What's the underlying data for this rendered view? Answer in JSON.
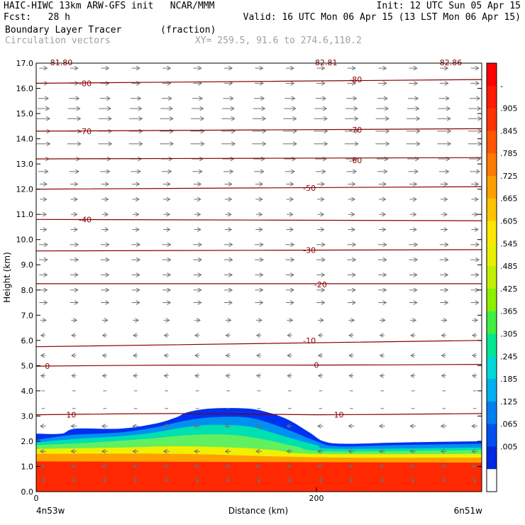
{
  "header": {
    "model_line": "HAIC-HIWC 13km ARW-GFS init   NCAR/MMM",
    "init_line": "Init: 12 UTC Sun 05 Apr 15",
    "fcst_line": "Fcst:   28 h",
    "valid_line": "Valid: 16 UTC Mon 06 Apr 15 (13 LST Mon 06 Apr 15)",
    "field_line": "Boundary Layer Tracer       (fraction)",
    "vectors_line": "Circulation vectors",
    "xy_line": "XY= 259.5, 91.6 to 274.6,110.2"
  },
  "chart_data": {
    "type": "heatmap",
    "title": "Boundary Layer Tracer",
    "units": "(fraction)",
    "ylabel": "Height (km)",
    "xlabel": "Distance (km)",
    "ylim": [
      0,
      17
    ],
    "xlim": [
      0,
      318
    ],
    "y_ticks": [
      "0.0",
      "1.0",
      "2.0",
      "3.0",
      "4.0",
      "5.0",
      "6.0",
      "7.0",
      "8.0",
      "9.0",
      "10.0",
      "11.0",
      "12.0",
      "13.0",
      "14.0",
      "15.0",
      "16.0",
      "17.0"
    ],
    "x_tick_labels": [
      {
        "x": 0,
        "label": "0"
      },
      {
        "x": 200,
        "label": "200"
      }
    ],
    "x_end_labels": {
      "left": "4n53w",
      "right": "6n51w"
    },
    "colorbar": {
      "labels": [
        "-",
        ".905",
        ".845",
        ".785",
        ".725",
        ".665",
        ".605",
        ".545",
        ".485",
        ".425",
        ".365",
        ".305",
        ".245",
        ".185",
        ".125",
        ".065",
        ".005"
      ],
      "colors": [
        "#ff0000",
        "#ff1a00",
        "#ff3300",
        "#ff5500",
        "#ff7a00",
        "#ffa000",
        "#ffc400",
        "#ffe600",
        "#e8f000",
        "#c0f000",
        "#8cf000",
        "#40f040",
        "#00e890",
        "#00d8d8",
        "#00b0f0",
        "#0080f0",
        "#0050f0",
        "#0028e0",
        "#ffffff"
      ]
    },
    "tracer_layers": [
      {
        "value": 0.005,
        "color": "#0030f0",
        "top_km": [
          [
            0,
            2.3
          ],
          [
            18,
            2.3
          ],
          [
            28,
            2.5
          ],
          [
            60,
            2.5
          ],
          [
            85,
            2.7
          ],
          [
            100,
            2.95
          ],
          [
            108,
            3.15
          ],
          [
            125,
            3.3
          ],
          [
            150,
            3.3
          ],
          [
            165,
            3.15
          ],
          [
            180,
            2.85
          ],
          [
            195,
            2.35
          ],
          [
            205,
            2.0
          ],
          [
            220,
            1.9
          ],
          [
            260,
            1.95
          ],
          [
            318,
            2.0
          ]
        ]
      },
      {
        "value": 0.125,
        "color": "#0090f0",
        "top_km": [
          [
            0,
            2.05
          ],
          [
            25,
            2.25
          ],
          [
            60,
            2.35
          ],
          [
            85,
            2.55
          ],
          [
            105,
            2.8
          ],
          [
            125,
            2.95
          ],
          [
            150,
            2.95
          ],
          [
            165,
            2.75
          ],
          [
            180,
            2.45
          ],
          [
            200,
            2.0
          ],
          [
            215,
            1.8
          ],
          [
            260,
            1.85
          ],
          [
            318,
            1.9
          ]
        ]
      },
      {
        "value": 0.245,
        "color": "#00e0b0",
        "top_km": [
          [
            0,
            1.95
          ],
          [
            30,
            2.1
          ],
          [
            60,
            2.2
          ],
          [
            85,
            2.35
          ],
          [
            105,
            2.55
          ],
          [
            125,
            2.65
          ],
          [
            150,
            2.6
          ],
          [
            165,
            2.4
          ],
          [
            180,
            2.15
          ],
          [
            200,
            1.85
          ],
          [
            215,
            1.7
          ],
          [
            318,
            1.75
          ]
        ]
      },
      {
        "value": 0.365,
        "color": "#60f060",
        "top_km": [
          [
            0,
            1.85
          ],
          [
            40,
            1.95
          ],
          [
            80,
            2.1
          ],
          [
            110,
            2.25
          ],
          [
            140,
            2.25
          ],
          [
            165,
            2.05
          ],
          [
            185,
            1.8
          ],
          [
            210,
            1.6
          ],
          [
            318,
            1.65
          ]
        ]
      },
      {
        "value": 0.545,
        "color": "#f0f000",
        "top_km": [
          [
            0,
            1.7
          ],
          [
            60,
            1.75
          ],
          [
            100,
            1.8
          ],
          [
            140,
            1.75
          ],
          [
            170,
            1.65
          ],
          [
            200,
            1.5
          ],
          [
            318,
            1.5
          ]
        ]
      },
      {
        "value": 0.665,
        "color": "#ffa000",
        "top_km": [
          [
            0,
            1.5
          ],
          [
            100,
            1.5
          ],
          [
            170,
            1.4
          ],
          [
            220,
            1.35
          ],
          [
            318,
            1.35
          ]
        ]
      },
      {
        "value": 0.845,
        "color": "#ff2800",
        "top_km": [
          [
            0,
            1.2
          ],
          [
            318,
            1.15
          ]
        ]
      }
    ],
    "temperature_contours": [
      {
        "label": "0",
        "points": [
          [
            0,
            4.98
          ],
          [
            100,
            5.02
          ],
          [
            200,
            5.02
          ],
          [
            318,
            5.05
          ]
        ],
        "label_at": [
          [
            8,
            4.98
          ],
          [
            200,
            5.02
          ]
        ]
      },
      {
        "label": "10",
        "points": [
          [
            0,
            3.05
          ],
          [
            100,
            3.1
          ],
          [
            200,
            3.05
          ],
          [
            318,
            3.1
          ]
        ],
        "label_at": [
          [
            25,
            3.05
          ],
          [
            216,
            3.05
          ]
        ]
      },
      {
        "label": "-10",
        "points": [
          [
            0,
            5.75
          ],
          [
            318,
            6.0
          ]
        ],
        "label_at": [
          [
            195,
            6.0
          ]
        ]
      },
      {
        "label": "-20",
        "points": [
          [
            0,
            8.25
          ],
          [
            318,
            8.25
          ]
        ],
        "label_at": [
          [
            203,
            8.22
          ]
        ]
      },
      {
        "label": "-30",
        "points": [
          [
            0,
            9.55
          ],
          [
            318,
            9.6
          ]
        ],
        "label_at": [
          [
            195,
            9.58
          ]
        ]
      },
      {
        "label": "-40",
        "points": [
          [
            0,
            10.8
          ],
          [
            318,
            10.75
          ]
        ],
        "label_at": [
          [
            35,
            10.8
          ]
        ]
      },
      {
        "label": "-50",
        "points": [
          [
            0,
            12.0
          ],
          [
            318,
            12.1
          ]
        ],
        "label_at": [
          [
            195,
            12.05
          ]
        ]
      },
      {
        "label": "-60",
        "points": [
          [
            0,
            13.2
          ],
          [
            318,
            13.25
          ]
        ],
        "label_at": [
          [
            228,
            13.15
          ]
        ]
      },
      {
        "label": "-70",
        "points": [
          [
            0,
            14.3
          ],
          [
            318,
            14.4
          ]
        ],
        "label_at": [
          [
            35,
            14.3
          ],
          [
            228,
            14.35
          ]
        ]
      },
      {
        "label": "-80",
        "points": [
          [
            0,
            16.2
          ],
          [
            318,
            16.35
          ]
        ],
        "label_at": [
          [
            35,
            16.2
          ],
          [
            228,
            16.35
          ]
        ]
      }
    ],
    "clipped_top_labels": [
      {
        "x": 8,
        "label": "-81.80"
      },
      {
        "x": 197,
        "label": "-82.81"
      },
      {
        "x": 286,
        "label": "-82.86"
      }
    ],
    "vector_rows": [
      {
        "z": 0.5,
        "u": 0.0,
        "w": -2.0,
        "mag": 0.4
      },
      {
        "z": 1.0,
        "u": -0.4,
        "w": 0.0,
        "mag": 0.3
      },
      {
        "z": 1.6,
        "u": -0.6,
        "w": 0.0,
        "mag": 0.3
      },
      {
        "z": 2.6,
        "u": -0.4,
        "w": 0.0,
        "mag": 0.3
      },
      {
        "z": 3.3,
        "u": 0.0,
        "w": 0.0,
        "mag": 0.1
      },
      {
        "z": 4.0,
        "u": 0.2,
        "w": 0.0,
        "mag": 0.1
      },
      {
        "z": 4.6,
        "u": -0.4,
        "w": 0.0,
        "mag": 0.2
      },
      {
        "z": 5.4,
        "u": -0.5,
        "w": 0.0,
        "mag": 0.2
      },
      {
        "z": 6.2,
        "u": -0.5,
        "w": 0.0,
        "mag": 0.2
      },
      {
        "z": 6.8,
        "u": 0.4,
        "w": 0.0,
        "mag": 0.3
      },
      {
        "z": 7.5,
        "u": 1.0,
        "w": 0.0,
        "mag": 0.5
      },
      {
        "z": 8.0,
        "u": 1.0,
        "w": 0.0,
        "mag": 0.5
      },
      {
        "z": 8.6,
        "u": 1.0,
        "w": 0.0,
        "mag": 0.5
      },
      {
        "z": 9.2,
        "u": 1.0,
        "w": 0.0,
        "mag": 0.55
      },
      {
        "z": 9.8,
        "u": 1.0,
        "w": 0.0,
        "mag": 0.55
      },
      {
        "z": 10.4,
        "u": 1.0,
        "w": 0.0,
        "mag": 0.4
      },
      {
        "z": 11.0,
        "u": 1.0,
        "w": 0.0,
        "mag": 0.35
      },
      {
        "z": 11.6,
        "u": 1.0,
        "w": 0.0,
        "mag": 0.4
      },
      {
        "z": 12.2,
        "u": 1.0,
        "w": 0.0,
        "mag": 0.45
      },
      {
        "z": 12.7,
        "u": 1.0,
        "w": 0.0,
        "mag": 0.65
      },
      {
        "z": 13.2,
        "u": 1.0,
        "w": 0.0,
        "mag": 0.8
      },
      {
        "z": 13.8,
        "u": 1.0,
        "w": 0.0,
        "mag": 1.0
      },
      {
        "z": 14.3,
        "u": 1.0,
        "w": 0.0,
        "mag": 1.0
      },
      {
        "z": 14.8,
        "u": 1.0,
        "w": 0.0,
        "mag": 0.95
      },
      {
        "z": 15.2,
        "u": 1.0,
        "w": 0.0,
        "mag": 0.85
      },
      {
        "z": 15.6,
        "u": 1.0,
        "w": 0.0,
        "mag": 0.7
      },
      {
        "z": 16.2,
        "u": 1.0,
        "w": 0.0,
        "mag": 0.55
      },
      {
        "z": 16.8,
        "u": 1.0,
        "w": 0.0,
        "mag": 0.5
      }
    ],
    "vector_columns_km": [
      5,
      27,
      49,
      71,
      93,
      115,
      137,
      159,
      181,
      203,
      225,
      247,
      269,
      291,
      313
    ]
  }
}
